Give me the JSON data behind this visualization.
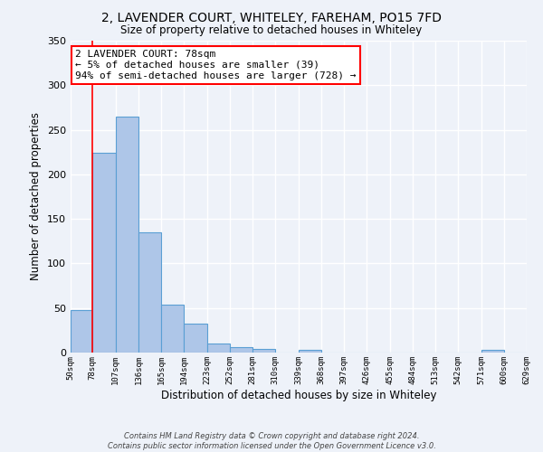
{
  "title_line1": "2, LAVENDER COURT, WHITELEY, FAREHAM, PO15 7FD",
  "title_line2": "Size of property relative to detached houses in Whiteley",
  "xlabel": "Distribution of detached houses by size in Whiteley",
  "ylabel": "Number of detached properties",
  "bins": [
    50,
    78,
    107,
    136,
    165,
    194,
    223,
    252,
    281,
    310,
    339,
    368,
    397,
    426,
    455,
    484,
    513,
    542,
    571,
    600,
    629
  ],
  "counts": [
    48,
    224,
    265,
    135,
    54,
    32,
    10,
    6,
    4,
    0,
    3,
    0,
    0,
    0,
    0,
    0,
    0,
    0,
    3,
    0
  ],
  "bar_color": "#aec6e8",
  "bar_edge_color": "#5a9fd4",
  "red_line_x": 78,
  "annotation_text": "2 LAVENDER COURT: 78sqm\n← 5% of detached houses are smaller (39)\n94% of semi-detached houses are larger (728) →",
  "annotation_box_color": "white",
  "annotation_box_edge_color": "red",
  "footer_text": "Contains HM Land Registry data © Crown copyright and database right 2024.\nContains public sector information licensed under the Open Government Licence v3.0.",
  "ylim": [
    0,
    350
  ],
  "bg_color": "#eef2f9",
  "grid_color": "#ffffff"
}
